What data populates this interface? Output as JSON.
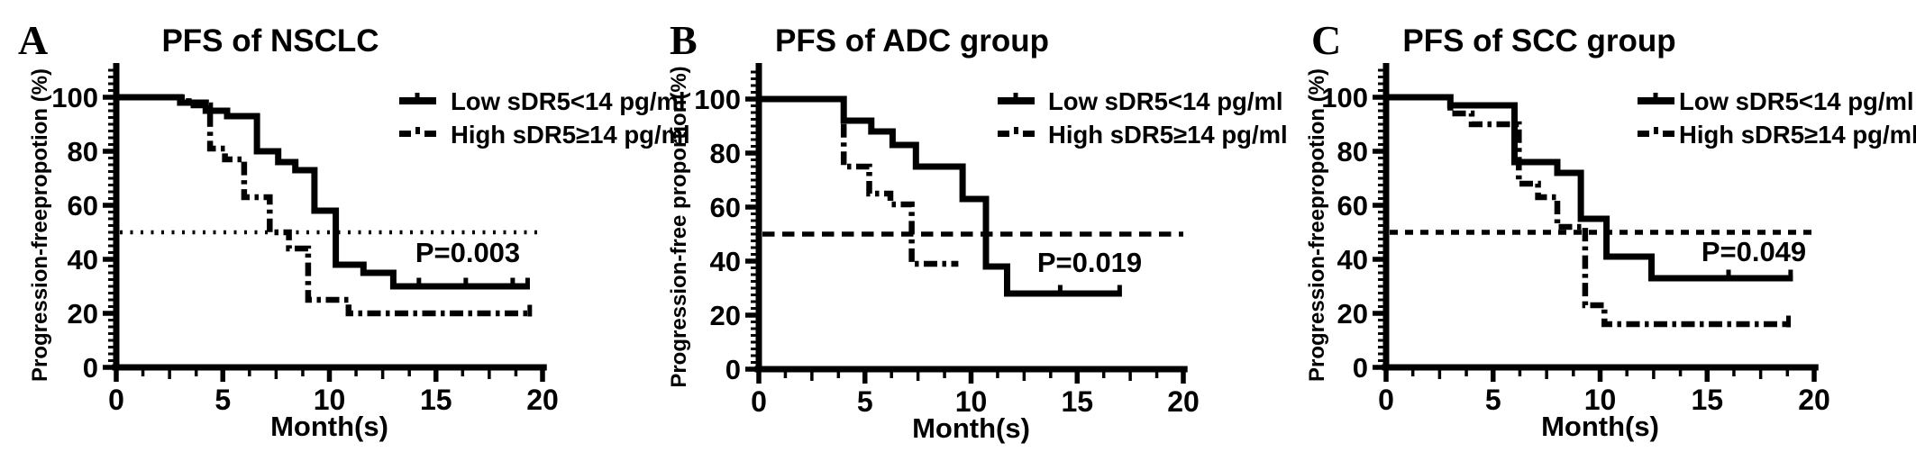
{
  "figure": {
    "background": "#ffffff",
    "ink_color": "#000000",
    "description": "Kaplan-Meier progression-free survival curves, three panels"
  },
  "chart_data": [
    {
      "type": "line",
      "subtype": "kaplan-meier-step",
      "panel_letter": "A",
      "title": "PFS of NSCLC",
      "xlabel": "Month(s)",
      "ylabel": "Progression-freepropotion (%)",
      "xlim": [
        0,
        20
      ],
      "ylim": [
        0,
        100
      ],
      "xticks": [
        0,
        5,
        10,
        15,
        20
      ],
      "yticks": [
        0,
        20,
        40,
        60,
        80,
        100
      ],
      "grid": false,
      "legend_position": "top-right",
      "p_value_label": "P=0.003",
      "reference_line": {
        "y": 50,
        "style": "dotted"
      },
      "series": [
        {
          "name": "Low sDR5<14 pg/ml",
          "line_style": "solid",
          "points": [
            [
              0,
              100
            ],
            [
              3,
              100
            ],
            [
              3,
              98
            ],
            [
              4.2,
              98
            ],
            [
              4.2,
              95
            ],
            [
              5.2,
              95
            ],
            [
              5.2,
              93
            ],
            [
              6.6,
              93
            ],
            [
              6.6,
              80
            ],
            [
              7.6,
              80
            ],
            [
              7.6,
              76
            ],
            [
              8.4,
              76
            ],
            [
              8.4,
              73
            ],
            [
              9.3,
              73
            ],
            [
              9.3,
              58
            ],
            [
              10.3,
              58
            ],
            [
              10.3,
              38
            ],
            [
              11.6,
              38
            ],
            [
              11.6,
              35
            ],
            [
              13,
              35
            ],
            [
              13,
              30
            ],
            [
              19.4,
              30
            ]
          ],
          "censor_marks": [
            [
              14.2,
              30
            ],
            [
              16.4,
              30
            ],
            [
              18.6,
              30
            ],
            [
              19.3,
              30
            ]
          ]
        },
        {
          "name": "High sDR5≥14 pg/ml",
          "line_style": "dash-dot",
          "points": [
            [
              0,
              100
            ],
            [
              3.4,
              100
            ],
            [
              3.4,
              97
            ],
            [
              4.4,
              97
            ],
            [
              4.4,
              81
            ],
            [
              5.1,
              81
            ],
            [
              5.1,
              77
            ],
            [
              6,
              77
            ],
            [
              6,
              63
            ],
            [
              7.2,
              63
            ],
            [
              7.2,
              50
            ],
            [
              8.1,
              50
            ],
            [
              8.1,
              44
            ],
            [
              9,
              44
            ],
            [
              9,
              25
            ],
            [
              10.9,
              25
            ],
            [
              10.9,
              20
            ],
            [
              19.5,
              20
            ]
          ],
          "censor_marks": [
            [
              19.4,
              20
            ]
          ]
        }
      ]
    },
    {
      "type": "line",
      "subtype": "kaplan-meier-step",
      "panel_letter": "B",
      "title": "PFS of ADC group",
      "xlabel": "Month(s)",
      "ylabel": "Progression-free proportion(%)",
      "xlim": [
        0,
        20
      ],
      "ylim": [
        0,
        100
      ],
      "xticks": [
        0,
        5,
        10,
        15,
        20
      ],
      "yticks": [
        0,
        20,
        40,
        60,
        80,
        100
      ],
      "grid": false,
      "legend_position": "top-right",
      "p_value_label": "P=0.019",
      "reference_line": {
        "y": 50,
        "style": "dashed"
      },
      "series": [
        {
          "name": "Low sDR5<14 pg/ml",
          "line_style": "solid",
          "points": [
            [
              0,
              100
            ],
            [
              4,
              100
            ],
            [
              4,
              92
            ],
            [
              5.3,
              92
            ],
            [
              5.3,
              88
            ],
            [
              6.3,
              88
            ],
            [
              6.3,
              83
            ],
            [
              7.4,
              83
            ],
            [
              7.4,
              75
            ],
            [
              9.6,
              75
            ],
            [
              9.6,
              63
            ],
            [
              10.7,
              63
            ],
            [
              10.7,
              38
            ],
            [
              11.7,
              38
            ],
            [
              11.7,
              28
            ],
            [
              17.1,
              28
            ]
          ],
          "censor_marks": [
            [
              14.2,
              28
            ],
            [
              17,
              28
            ]
          ]
        },
        {
          "name": "High sDR5≥14 pg/ml",
          "line_style": "dash-dot",
          "points": [
            [
              0,
              100
            ],
            [
              4,
              100
            ],
            [
              4,
              75
            ],
            [
              5.2,
              75
            ],
            [
              5.2,
              65
            ],
            [
              6.2,
              65
            ],
            [
              6.2,
              61
            ],
            [
              7.2,
              61
            ],
            [
              7.2,
              39
            ],
            [
              9.4,
              39
            ]
          ],
          "censor_marks": []
        }
      ]
    },
    {
      "type": "line",
      "subtype": "kaplan-meier-step",
      "panel_letter": "C",
      "title": "PFS of SCC group",
      "xlabel": "Month(s)",
      "ylabel": "Progression-freepropotion (%)",
      "xlim": [
        0,
        20
      ],
      "ylim": [
        0,
        100
      ],
      "xticks": [
        0,
        5,
        10,
        15,
        20
      ],
      "yticks": [
        0,
        20,
        40,
        60,
        80,
        100
      ],
      "grid": false,
      "legend_position": "top-right",
      "p_value_label": "P=0.049",
      "reference_line": {
        "y": 50,
        "style": "dashed-short"
      },
      "series": [
        {
          "name": "Low sDR5<14 pg/ml",
          "line_style": "solid",
          "points": [
            [
              0,
              100
            ],
            [
              3,
              100
            ],
            [
              3,
              97
            ],
            [
              6,
              97
            ],
            [
              6,
              76
            ],
            [
              8,
              76
            ],
            [
              8,
              72
            ],
            [
              9.1,
              72
            ],
            [
              9.1,
              55
            ],
            [
              10.3,
              55
            ],
            [
              10.3,
              41
            ],
            [
              12.4,
              41
            ],
            [
              12.4,
              33
            ],
            [
              19,
              33
            ]
          ],
          "censor_marks": [
            [
              16,
              33
            ],
            [
              18.9,
              33
            ]
          ]
        },
        {
          "name": "High sDR5≥14 pg/ml",
          "line_style": "dash-dot",
          "points": [
            [
              0,
              100
            ],
            [
              3,
              100
            ],
            [
              3,
              94
            ],
            [
              4,
              94
            ],
            [
              4,
              90
            ],
            [
              6.2,
              90
            ],
            [
              6.2,
              68
            ],
            [
              7.1,
              68
            ],
            [
              7.1,
              63
            ],
            [
              8,
              63
            ],
            [
              8,
              52
            ],
            [
              9.3,
              52
            ],
            [
              9.3,
              23
            ],
            [
              10.2,
              23
            ],
            [
              10.2,
              16
            ],
            [
              18.9,
              16
            ]
          ],
          "censor_marks": [
            [
              18.8,
              16
            ]
          ]
        }
      ]
    }
  ]
}
